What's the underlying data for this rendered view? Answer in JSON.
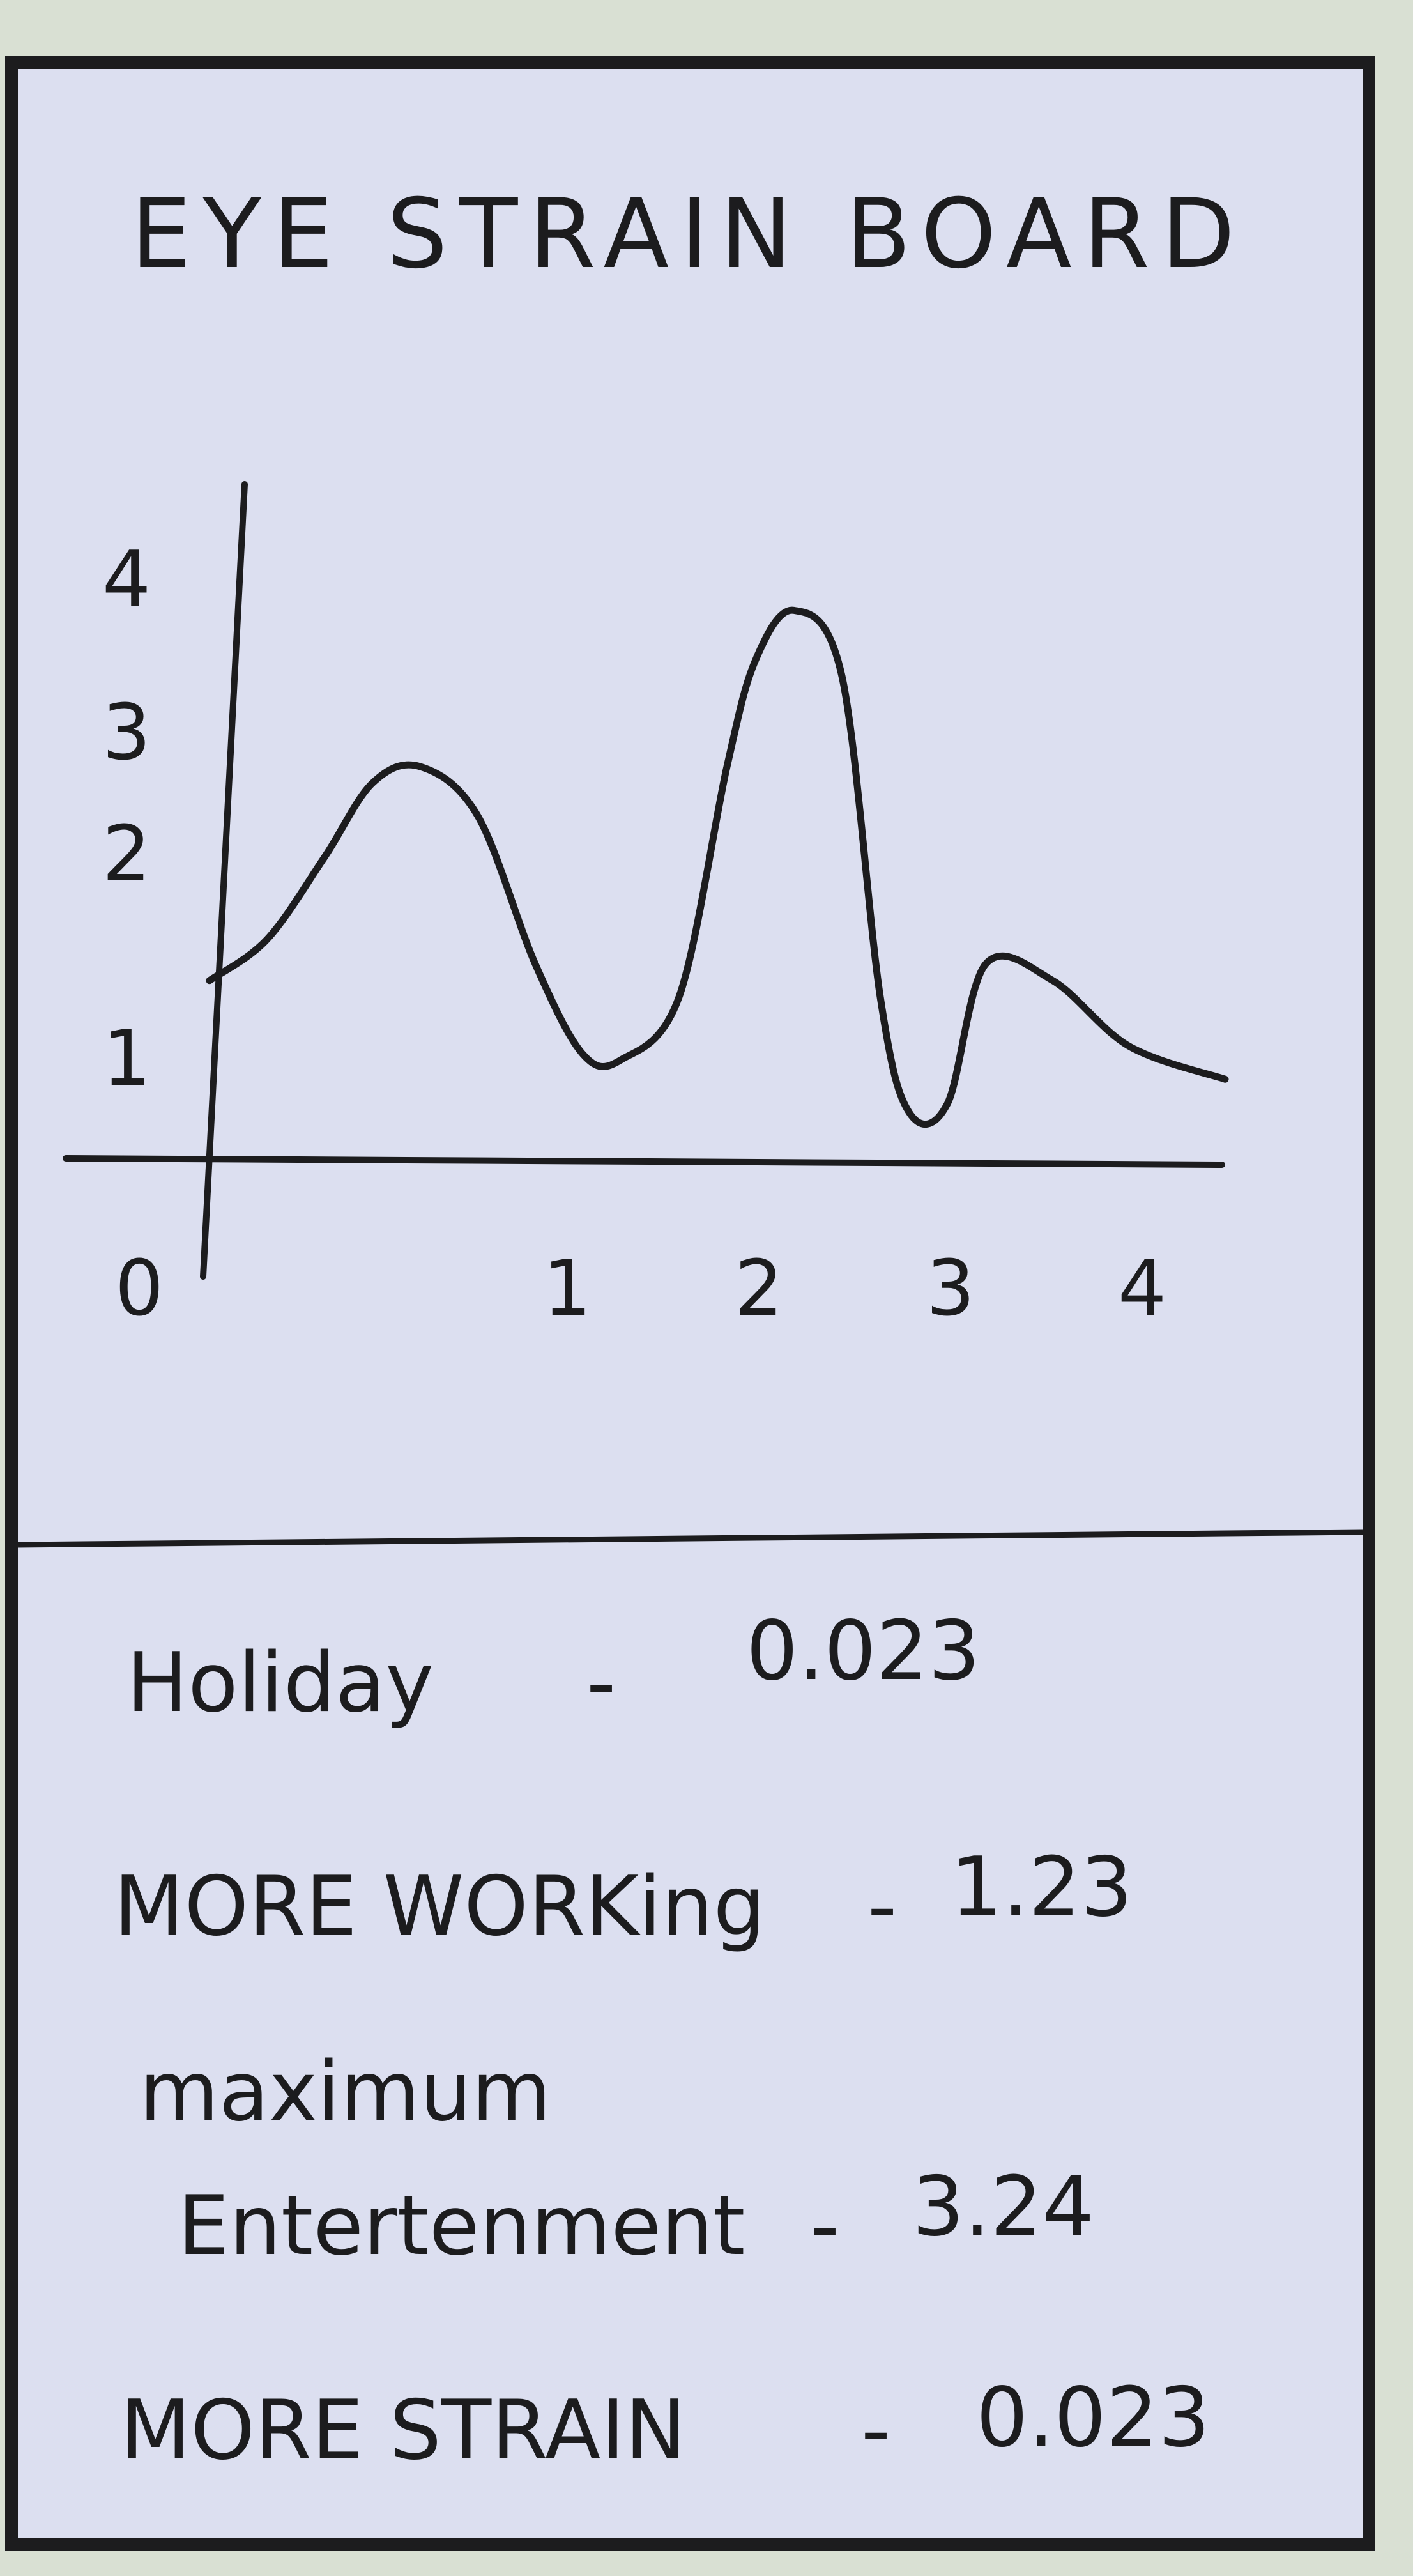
{
  "board": {
    "title": "EYE STRAIN BOARD",
    "colors": {
      "paper": "#dcdff0",
      "ink": "#1c1c1e",
      "wall": "#d9e0d3"
    }
  },
  "chart_data": {
    "type": "line",
    "title": "EYE STRAIN BOARD",
    "xlabel": "",
    "ylabel": "",
    "xlim": [
      0,
      5.3
    ],
    "ylim": [
      0,
      4
    ],
    "x_ticks": [
      "0",
      "1",
      "2",
      "3",
      "4"
    ],
    "y_ticks": [
      "1",
      "2",
      "3",
      "4"
    ],
    "grid": false,
    "series": [
      {
        "x": [
          0,
          0.3,
          0.6,
          0.85,
          1.1,
          1.4,
          1.7,
          1.95,
          2.15,
          2.45,
          2.7,
          2.85,
          3.05,
          3.3,
          3.5,
          3.65,
          3.85,
          4.05,
          4.4,
          4.8,
          5.3
        ],
        "y": [
          1.1,
          1.35,
          1.85,
          2.3,
          2.4,
          2.1,
          1.2,
          0.65,
          0.62,
          1.0,
          2.4,
          3.05,
          3.35,
          2.95,
          1.0,
          0.3,
          0.35,
          1.2,
          1.1,
          0.7,
          0.5
        ]
      }
    ]
  },
  "list": {
    "items": [
      {
        "label": "Holiday",
        "value": "0.023"
      },
      {
        "label": "MORE WORKing",
        "value": "1.23"
      },
      {
        "label_line1": "maximum",
        "label_line2": "Entertenment",
        "value": "3.24"
      },
      {
        "label": "MORE STRAIN",
        "value": "0.023"
      }
    ],
    "separator": "-"
  }
}
